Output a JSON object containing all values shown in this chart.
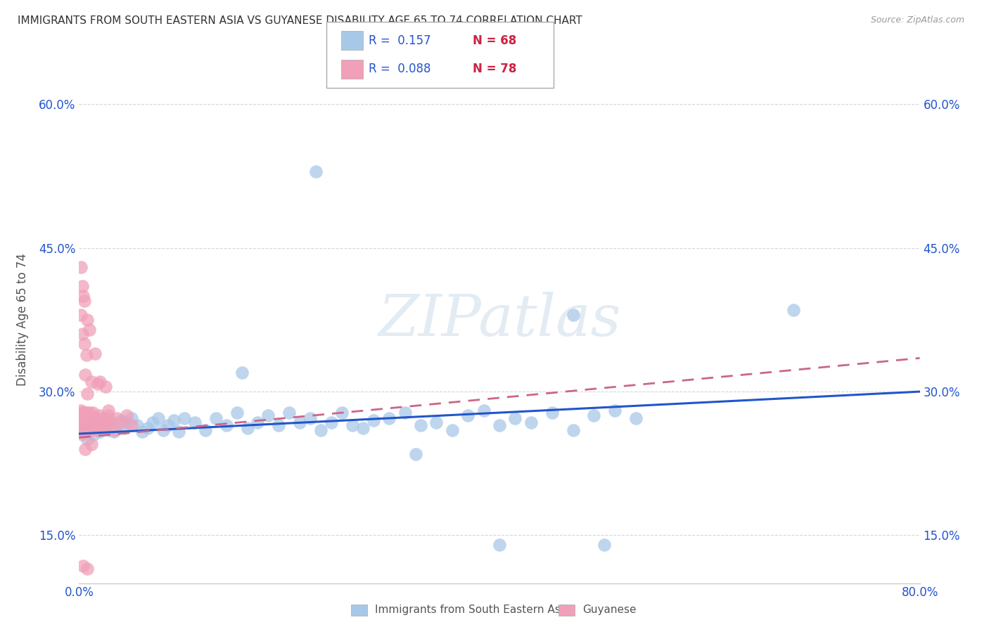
{
  "title": "IMMIGRANTS FROM SOUTH EASTERN ASIA VS GUYANESE DISABILITY AGE 65 TO 74 CORRELATION CHART",
  "source": "Source: ZipAtlas.com",
  "ylabel": "Disability Age 65 to 74",
  "xlim": [
    0.0,
    0.8
  ],
  "ylim": [
    0.1,
    0.65
  ],
  "xtick_vals": [
    0.0,
    0.2,
    0.4,
    0.6,
    0.8
  ],
  "xtick_labels": [
    "0.0%",
    "",
    "",
    "",
    "80.0%"
  ],
  "ytick_vals": [
    0.15,
    0.3,
    0.45,
    0.6
  ],
  "ytick_labels": [
    "15.0%",
    "30.0%",
    "45.0%",
    "60.0%"
  ],
  "legend_labels_bottom": [
    "Immigrants from South Eastern Asia",
    "Guyanese"
  ],
  "legend_R1": "R =  0.157",
  "legend_N1": "N = 68",
  "legend_R2": "R =  0.088",
  "legend_N2": "N = 78",
  "color_blue": "#a8c8e8",
  "color_pink": "#f0a0b8",
  "color_blue_line": "#2255cc",
  "color_pink_line": "#cc6688",
  "color_blue_text": "#2255cc",
  "color_red_text": "#cc2244",
  "watermark": "ZIPatlas",
  "background": "#ffffff",
  "blue_x": [
    0.005,
    0.008,
    0.01,
    0.012,
    0.014,
    0.016,
    0.018,
    0.02,
    0.022,
    0.025,
    0.028,
    0.03,
    0.033,
    0.036,
    0.04,
    0.043,
    0.046,
    0.05,
    0.055,
    0.06,
    0.065,
    0.07,
    0.075,
    0.08,
    0.085,
    0.09,
    0.095,
    0.1,
    0.11,
    0.12,
    0.13,
    0.14,
    0.15,
    0.16,
    0.17,
    0.18,
    0.19,
    0.2,
    0.21,
    0.22,
    0.23,
    0.24,
    0.25,
    0.26,
    0.27,
    0.28,
    0.295,
    0.31,
    0.325,
    0.34,
    0.355,
    0.37,
    0.385,
    0.4,
    0.415,
    0.43,
    0.45,
    0.47,
    0.49,
    0.51,
    0.53,
    0.225,
    0.47,
    0.68,
    0.5,
    0.4,
    0.32,
    0.155
  ],
  "blue_y": [
    0.26,
    0.25,
    0.265,
    0.268,
    0.255,
    0.262,
    0.27,
    0.258,
    0.265,
    0.272,
    0.26,
    0.268,
    0.258,
    0.265,
    0.27,
    0.262,
    0.268,
    0.272,
    0.265,
    0.258,
    0.262,
    0.268,
    0.272,
    0.26,
    0.265,
    0.27,
    0.258,
    0.272,
    0.268,
    0.26,
    0.272,
    0.265,
    0.278,
    0.262,
    0.268,
    0.275,
    0.265,
    0.278,
    0.268,
    0.272,
    0.26,
    0.268,
    0.278,
    0.265,
    0.262,
    0.27,
    0.272,
    0.278,
    0.265,
    0.268,
    0.26,
    0.275,
    0.28,
    0.265,
    0.272,
    0.268,
    0.278,
    0.26,
    0.275,
    0.28,
    0.272,
    0.53,
    0.38,
    0.385,
    0.14,
    0.14,
    0.235,
    0.32
  ],
  "pink_x": [
    0.001,
    0.001,
    0.001,
    0.002,
    0.002,
    0.002,
    0.002,
    0.003,
    0.003,
    0.003,
    0.003,
    0.003,
    0.004,
    0.004,
    0.004,
    0.004,
    0.005,
    0.005,
    0.005,
    0.005,
    0.006,
    0.006,
    0.006,
    0.007,
    0.007,
    0.007,
    0.008,
    0.008,
    0.008,
    0.009,
    0.009,
    0.009,
    0.01,
    0.01,
    0.01,
    0.011,
    0.012,
    0.012,
    0.013,
    0.014,
    0.015,
    0.016,
    0.017,
    0.018,
    0.019,
    0.02,
    0.022,
    0.024,
    0.026,
    0.028,
    0.03,
    0.033,
    0.036,
    0.04,
    0.045,
    0.05,
    0.002,
    0.003,
    0.004,
    0.005,
    0.006,
    0.007,
    0.008,
    0.012,
    0.018,
    0.025,
    0.002,
    0.003,
    0.005,
    0.008,
    0.01,
    0.015,
    0.02,
    0.028,
    0.012,
    0.006,
    0.004,
    0.008
  ],
  "pink_y": [
    0.26,
    0.272,
    0.258,
    0.265,
    0.27,
    0.28,
    0.258,
    0.265,
    0.272,
    0.26,
    0.278,
    0.255,
    0.268,
    0.26,
    0.272,
    0.278,
    0.262,
    0.268,
    0.258,
    0.275,
    0.265,
    0.272,
    0.278,
    0.26,
    0.265,
    0.275,
    0.262,
    0.268,
    0.278,
    0.258,
    0.265,
    0.275,
    0.26,
    0.268,
    0.278,
    0.265,
    0.272,
    0.262,
    0.278,
    0.268,
    0.265,
    0.272,
    0.26,
    0.268,
    0.275,
    0.265,
    0.272,
    0.268,
    0.265,
    0.275,
    0.268,
    0.26,
    0.272,
    0.268,
    0.275,
    0.265,
    0.38,
    0.36,
    0.4,
    0.35,
    0.318,
    0.338,
    0.298,
    0.31,
    0.308,
    0.305,
    0.43,
    0.41,
    0.395,
    0.375,
    0.365,
    0.34,
    0.31,
    0.28,
    0.245,
    0.24,
    0.118,
    0.115
  ]
}
